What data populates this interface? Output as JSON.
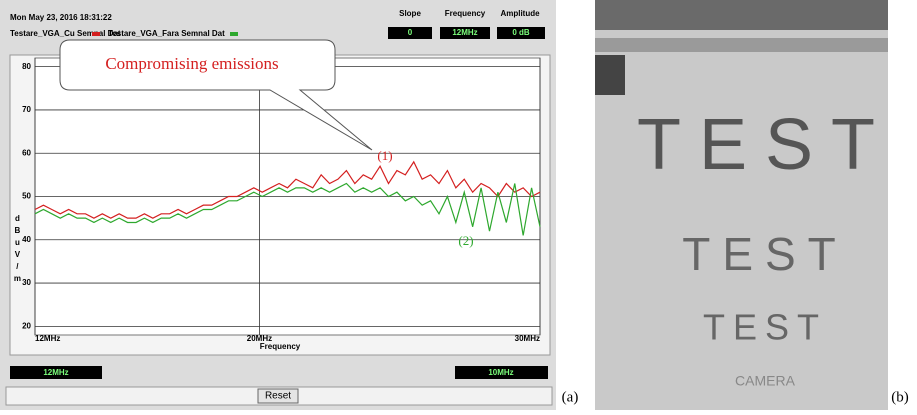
{
  "chart_data": {
    "type": "line",
    "title": "Mon May 23, 2016 18:31:22",
    "xlabel": "Frequency",
    "ylabel": "dBuV/m",
    "x": [
      12,
      12.3,
      12.6,
      12.9,
      13.2,
      13.5,
      13.8,
      14.1,
      14.4,
      14.7,
      15,
      15.3,
      15.6,
      15.9,
      16.2,
      16.5,
      16.8,
      17.1,
      17.4,
      17.7,
      18,
      18.3,
      18.6,
      18.9,
      19.2,
      19.5,
      19.8,
      20.1,
      20.4,
      20.7,
      21,
      21.3,
      21.6,
      21.9,
      22.2,
      22.5,
      22.8,
      23.1,
      23.4,
      23.7,
      24,
      24.3,
      24.6,
      24.9,
      25.2,
      25.5,
      25.8,
      26.1,
      26.4,
      26.7,
      27,
      27.3,
      27.6,
      27.9,
      28.2,
      28.5,
      28.8,
      29.1,
      29.4,
      29.7,
      30
    ],
    "xlim": [
      12,
      30
    ],
    "xticks": [
      {
        "value": 12,
        "label": "12MHz"
      },
      {
        "value": 20,
        "label": "20MHz"
      },
      {
        "value": 30,
        "label": "30MHz"
      }
    ],
    "ylim": [
      18,
      82
    ],
    "yticks": [
      20,
      30,
      40,
      50,
      60,
      70,
      80
    ],
    "grid": true,
    "series": [
      {
        "name": "Testare_VGA_Cu Semnal Dat",
        "color": "#d42020",
        "values": [
          47,
          48,
          47,
          46,
          47,
          46,
          46,
          45,
          46,
          45,
          46,
          45,
          45,
          46,
          45,
          46,
          46,
          47,
          46,
          47,
          48,
          48,
          49,
          50,
          50,
          51,
          52,
          51,
          52,
          53,
          52,
          54,
          53,
          52,
          55,
          53,
          54,
          56,
          53,
          55,
          54,
          57,
          53,
          56,
          55,
          58,
          54,
          55,
          53,
          56,
          52,
          54,
          51,
          53,
          52,
          50,
          53,
          51,
          52,
          50,
          51
        ]
      },
      {
        "name": "Testare_VGA_Fara Semnal Dat",
        "color": "#2ea82e",
        "values": [
          46,
          47,
          46,
          45,
          46,
          45,
          45,
          44,
          45,
          44,
          45,
          44,
          44,
          45,
          44,
          45,
          45,
          46,
          45,
          46,
          47,
          47,
          48,
          49,
          49,
          50,
          51,
          50,
          51,
          52,
          51,
          52,
          52,
          51,
          52,
          51,
          52,
          53,
          51,
          52,
          51,
          52,
          50,
          51,
          49,
          50,
          48,
          49,
          46,
          50,
          44,
          51,
          43,
          52,
          42,
          51,
          44,
          53,
          41,
          52,
          43
        ]
      }
    ],
    "annotations": {
      "callout": "Compromising emissions",
      "marker_1": "(1)",
      "marker_2": "(2)"
    }
  },
  "toolbar": {
    "slope": {
      "label": "Slope",
      "value": "0"
    },
    "frequency": {
      "label": "Frequency",
      "value": "12MHz"
    },
    "amplitude": {
      "label": "Amplitude",
      "value": "0 dB"
    }
  },
  "bottom_bar": {
    "start": "12MHz",
    "span": "10MHz",
    "reset": "Reset"
  },
  "panel_labels": [
    "(a)",
    "(b)"
  ],
  "image_text": [
    "TEST",
    "TEST",
    "TEST",
    "CAMERA"
  ]
}
